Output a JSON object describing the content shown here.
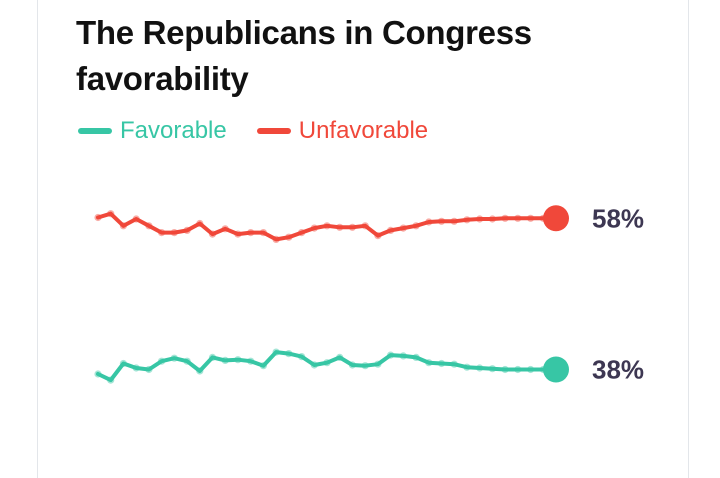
{
  "chart_data": {
    "type": "line",
    "title": "The Republicans in Congress favorability",
    "y_unit": "%",
    "ylim": [
      30,
      62
    ],
    "grid": false,
    "legend_position": "top-left",
    "x": [
      1,
      2,
      3,
      4,
      5,
      6,
      7,
      8,
      9,
      10,
      11,
      12,
      13,
      14,
      15,
      16,
      17,
      18,
      19,
      20,
      21,
      22,
      23,
      24,
      25,
      26,
      27,
      28,
      29,
      30,
      31,
      32,
      33,
      34,
      35,
      36,
      37
    ],
    "series": [
      {
        "name": "Favorable",
        "color": "#37c6a5",
        "end_label": "38%",
        "values": [
          37.4,
          36.6,
          38.8,
          38.2,
          38.0,
          39.1,
          39.5,
          39.1,
          37.8,
          39.6,
          39.2,
          39.3,
          39.1,
          38.5,
          40.3,
          40.1,
          39.7,
          38.6,
          38.9,
          39.6,
          38.6,
          38.5,
          38.7,
          39.9,
          39.8,
          39.6,
          38.9,
          38.8,
          38.7,
          38.3,
          38.2,
          38.1,
          38.0,
          38.0,
          38.0,
          38.0,
          38.0
        ]
      },
      {
        "name": "Unfavorable",
        "color": "#f0483a",
        "end_label": "58%",
        "values": [
          58.1,
          58.6,
          57.0,
          57.9,
          57.0,
          56.1,
          56.1,
          56.4,
          57.3,
          55.9,
          56.6,
          55.9,
          56.1,
          56.1,
          55.2,
          55.5,
          56.1,
          56.7,
          57.0,
          56.8,
          56.8,
          57.0,
          55.7,
          56.4,
          56.7,
          57.0,
          57.5,
          57.6,
          57.6,
          57.8,
          57.9,
          57.9,
          58.0,
          58.0,
          58.0,
          58.0,
          58.0
        ]
      }
    ]
  }
}
